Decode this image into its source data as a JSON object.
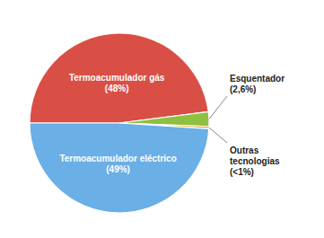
{
  "chart_data": {
    "type": "pie",
    "categories": [
      "Termoacumulador gás\n(48%)",
      "Esquentador\n(2,6%)",
      "Outras\ntecnologias\n(<1%)",
      "Termoacumulador eléctrico\n(49%)"
    ],
    "values": [
      48,
      2.6,
      0.4,
      49
    ],
    "colors": [
      "#D94F45",
      "#8DC040",
      "#E8A020",
      "#6AAFE6"
    ]
  }
}
